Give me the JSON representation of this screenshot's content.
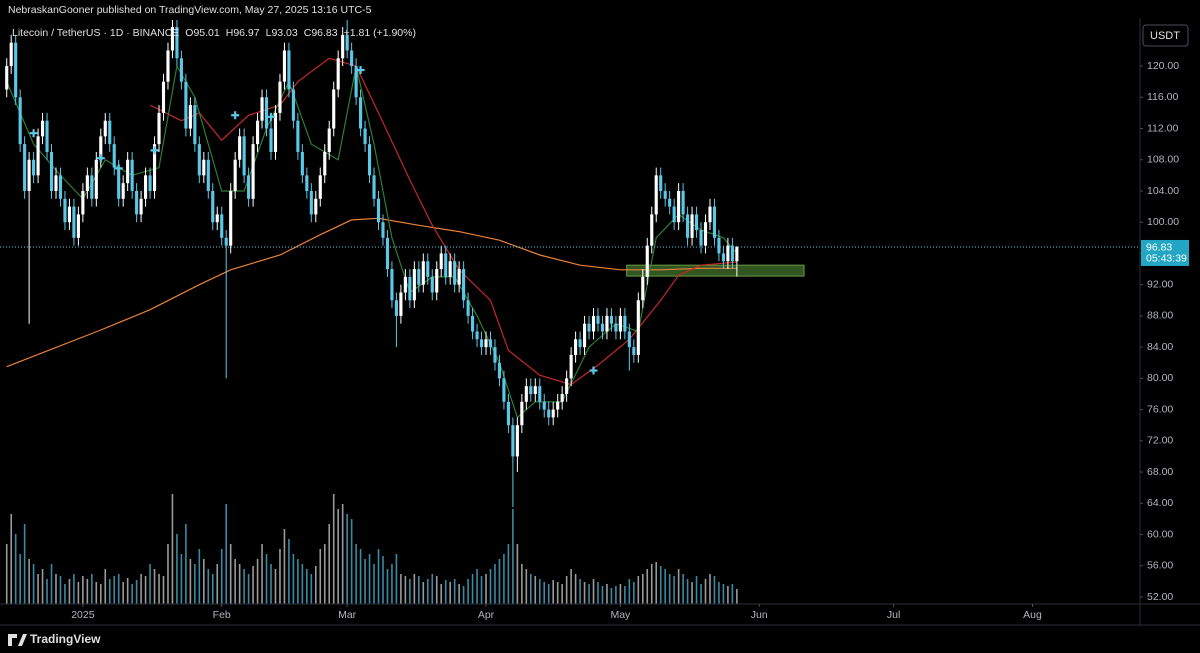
{
  "header": {
    "text": "NebraskanGooner published on TradingView.com, May 27, 2025 13:16 UTC-5"
  },
  "toolbar": {
    "currency": "USDT"
  },
  "footer": {
    "brand": "TradingView"
  },
  "chart_data": {
    "type": "candlestick",
    "legend": {
      "symbol": "Litecoin / TetherUS · 1D · BINANCE",
      "open": "O95.01",
      "high": "H96.97",
      "low": "L93.03",
      "close": "C96.83",
      "change": "+1.81 (+1.90%)"
    },
    "up_color": "#ffffff",
    "down_color": "#5bc8e8",
    "volume_up_color": "#9a9a9a",
    "volume_down_color": "#3a8aa3",
    "xlim": [
      -1.5,
      253
    ],
    "xticks": [
      {
        "value": 17,
        "label": "2025"
      },
      {
        "value": 48,
        "label": "Feb"
      },
      {
        "value": 76,
        "label": "Mar"
      },
      {
        "value": 107,
        "label": "Apr"
      },
      {
        "value": 137,
        "label": "May"
      },
      {
        "value": 168,
        "label": "Jun"
      },
      {
        "value": 198,
        "label": "Jul"
      },
      {
        "value": 229,
        "label": "Aug"
      }
    ],
    "ylim": [
      51.1,
      125.9
    ],
    "yticks": [
      {
        "value": 52,
        "label": "52.00"
      },
      {
        "value": 56,
        "label": "56.00"
      },
      {
        "value": 60,
        "label": "60.00"
      },
      {
        "value": 64,
        "label": "64.00"
      },
      {
        "value": 68,
        "label": "68.00"
      },
      {
        "value": 72,
        "label": "72.00"
      },
      {
        "value": 76,
        "label": "76.00"
      },
      {
        "value": 80,
        "label": "80.00"
      },
      {
        "value": 84,
        "label": "84.00"
      },
      {
        "value": 88,
        "label": "88.00"
      },
      {
        "value": 92,
        "label": "92.00"
      },
      {
        "value": 96,
        "label": "96.00"
      },
      {
        "value": 100,
        "label": "100.00"
      },
      {
        "value": 104,
        "label": "104.00"
      },
      {
        "value": 108,
        "label": "108.00"
      },
      {
        "value": 112,
        "label": "112.00"
      },
      {
        "value": 116,
        "label": "116.00"
      },
      {
        "value": 120,
        "label": "120.00"
      }
    ],
    "open": [
      117,
      120,
      123,
      116,
      110,
      104,
      108,
      106,
      111,
      113,
      109,
      104,
      106,
      103,
      100,
      102,
      98,
      101,
      104,
      106,
      103,
      108,
      111,
      113,
      110,
      107,
      103,
      105,
      108,
      104,
      101,
      103,
      106,
      104,
      110,
      114,
      118,
      122,
      125,
      121,
      118,
      112,
      115,
      110,
      106,
      108,
      104,
      100,
      101,
      98,
      97,
      104,
      108,
      111,
      106,
      103,
      110,
      113,
      116,
      112,
      109,
      114,
      118,
      122,
      117,
      113,
      109,
      106,
      104,
      101,
      103,
      106,
      109,
      112,
      117,
      121,
      124,
      122,
      120,
      116,
      112,
      110,
      106,
      103,
      100,
      98,
      94,
      90,
      88,
      91,
      93,
      90,
      94,
      92,
      95,
      93,
      91,
      94,
      96,
      93,
      95,
      92,
      94,
      90,
      88,
      86,
      85,
      84,
      85,
      84,
      82,
      80,
      77,
      74,
      70,
      74,
      77,
      79,
      78,
      79,
      77,
      76,
      75,
      76,
      77,
      78,
      80,
      83,
      85,
      84,
      87,
      86,
      88,
      87,
      86,
      88,
      87,
      86,
      88,
      86,
      84,
      83,
      90,
      93,
      97,
      101,
      106,
      104,
      103,
      102,
      100,
      104,
      101,
      98,
      101,
      99,
      97,
      100,
      102,
      98,
      96,
      95,
      97,
      95.01
    ],
    "high": [
      121,
      124,
      124,
      117,
      111,
      109,
      109,
      112,
      114,
      114,
      110,
      107,
      107,
      104,
      103,
      103,
      102,
      105,
      107,
      107,
      109,
      112,
      114,
      114,
      111,
      108,
      106,
      109,
      109,
      105,
      104,
      107,
      107,
      111,
      115,
      119,
      123,
      126,
      126,
      122,
      119,
      116,
      116,
      111,
      109,
      109,
      105,
      102,
      102,
      99,
      105,
      109,
      112,
      112,
      107,
      111,
      114,
      117,
      117,
      113,
      115,
      119,
      123,
      123,
      118,
      114,
      110,
      107,
      105,
      104,
      107,
      110,
      113,
      118,
      122,
      125,
      126,
      123,
      121,
      117,
      113,
      111,
      107,
      104,
      101,
      99,
      95,
      91,
      92,
      94,
      94,
      95,
      95,
      96,
      96,
      94,
      95,
      97,
      97,
      96,
      96,
      95,
      95,
      91,
      89,
      87,
      86,
      86,
      86,
      85,
      83,
      81,
      78,
      75,
      75,
      78,
      80,
      80,
      80,
      80,
      78,
      77,
      77,
      78,
      79,
      81,
      84,
      86,
      86,
      88,
      88,
      89,
      89,
      88,
      89,
      89,
      88,
      89,
      89,
      87,
      85,
      91,
      94,
      98,
      102,
      107,
      107,
      105,
      104,
      103,
      105,
      105,
      102,
      102,
      102,
      100,
      101,
      103,
      103,
      99,
      97,
      98,
      98,
      96.97
    ],
    "low": [
      116,
      119,
      115,
      109,
      103,
      87,
      105,
      105,
      110,
      108,
      103,
      103,
      102,
      99,
      99,
      97,
      97,
      100,
      103,
      102,
      102,
      107,
      110,
      109,
      106,
      102,
      102,
      104,
      103,
      100,
      100,
      102,
      103,
      103,
      109,
      113,
      117,
      121,
      120,
      117,
      111,
      111,
      109,
      105,
      105,
      103,
      99,
      99,
      97,
      80,
      96,
      103,
      107,
      105,
      102,
      102,
      109,
      112,
      111,
      108,
      108,
      113,
      117,
      116,
      112,
      108,
      105,
      103,
      100,
      100,
      102,
      105,
      108,
      111,
      116,
      120,
      121,
      119,
      115,
      111,
      109,
      105,
      102,
      99,
      97,
      93,
      89,
      84,
      87,
      90,
      89,
      89,
      91,
      91,
      92,
      90,
      90,
      93,
      92,
      92,
      91,
      91,
      89,
      87,
      85,
      84,
      83,
      83,
      83,
      81,
      79,
      76,
      73,
      63.5,
      68,
      73,
      76,
      77,
      77,
      76,
      75,
      74,
      74,
      75,
      76,
      77,
      79,
      82,
      83,
      83,
      85,
      85,
      86,
      85,
      85,
      86,
      85,
      85,
      85,
      81,
      82,
      82,
      89,
      92,
      96,
      100,
      103,
      102,
      101,
      99,
      99,
      100,
      97,
      97,
      98,
      96,
      96,
      99,
      97,
      95,
      94,
      94,
      94,
      93.03
    ],
    "close": [
      120,
      123,
      116,
      110,
      104,
      108,
      106,
      111,
      113,
      109,
      104,
      106,
      103,
      100,
      102,
      98,
      101,
      104,
      106,
      103,
      108,
      111,
      113,
      110,
      107,
      103,
      105,
      108,
      104,
      101,
      103,
      106,
      104,
      110,
      114,
      118,
      122,
      125,
      121,
      118,
      112,
      115,
      110,
      106,
      108,
      104,
      100,
      101,
      98,
      97,
      104,
      108,
      111,
      106,
      103,
      110,
      113,
      116,
      112,
      109,
      114,
      118,
      122,
      117,
      113,
      109,
      106,
      104,
      101,
      103,
      106,
      109,
      112,
      117,
      121,
      124,
      122,
      120,
      116,
      112,
      110,
      106,
      103,
      100,
      98,
      94,
      90,
      88,
      91,
      93,
      90,
      94,
      92,
      95,
      93,
      91,
      94,
      96,
      93,
      95,
      92,
      94,
      90,
      88,
      86,
      85,
      84,
      85,
      84,
      82,
      80,
      77,
      74,
      70,
      74,
      77,
      79,
      78,
      79,
      77,
      76,
      75,
      76,
      77,
      78,
      80,
      83,
      85,
      84,
      87,
      86,
      88,
      87,
      86,
      88,
      87,
      86,
      88,
      86,
      84,
      83,
      90,
      93,
      97,
      101,
      106,
      104,
      103,
      102,
      100,
      104,
      101,
      98,
      101,
      99,
      97,
      100,
      102,
      98,
      96,
      95,
      97,
      95,
      96.83
    ],
    "volume": [
      60,
      90,
      70,
      50,
      80,
      45,
      40,
      30,
      35,
      25,
      40,
      30,
      28,
      20,
      25,
      30,
      22,
      28,
      25,
      30,
      22,
      20,
      35,
      25,
      28,
      30,
      22,
      26,
      20,
      24,
      30,
      28,
      40,
      35,
      30,
      28,
      60,
      110,
      70,
      50,
      80,
      45,
      40,
      55,
      45,
      35,
      30,
      40,
      55,
      100,
      60,
      45,
      40,
      35,
      30,
      38,
      45,
      60,
      50,
      40,
      35,
      55,
      75,
      65,
      50,
      45,
      40,
      35,
      30,
      38,
      55,
      60,
      80,
      110,
      95,
      100,
      90,
      85,
      60,
      55,
      45,
      50,
      40,
      55,
      48,
      35,
      40,
      50,
      30,
      28,
      25,
      30,
      28,
      22,
      25,
      30,
      28,
      20,
      24,
      22,
      25,
      20,
      18,
      25,
      30,
      35,
      28,
      30,
      35,
      40,
      45,
      50,
      60,
      95,
      60,
      40,
      35,
      30,
      28,
      25,
      22,
      20,
      24,
      22,
      20,
      28,
      35,
      30,
      25,
      22,
      20,
      25,
      22,
      18,
      20,
      16,
      18,
      20,
      18,
      25,
      22,
      28,
      30,
      35,
      40,
      42,
      38,
      35,
      30,
      28,
      35,
      30,
      25,
      22,
      28,
      20,
      25,
      30,
      28,
      22,
      20,
      18,
      20,
      15
    ],
    "lines": [
      {
        "color": "#e8823a",
        "x": [
          0,
          21,
          32,
          43,
          50,
          61,
          70,
          77,
          83,
          92,
          101,
          110,
          119,
          128,
          137,
          146,
          155,
          163
        ],
        "values": [
          81.5,
          86.2,
          88.8,
          92,
          93.9,
          95.8,
          98.4,
          100.3,
          100.5,
          99.6,
          98.8,
          97.7,
          95.8,
          94.5,
          93.9,
          93.9,
          94.1,
          94.1
        ]
      },
      {
        "color": "#c62828",
        "x": [
          32,
          39,
          43,
          48,
          54,
          61,
          65,
          72,
          78,
          83,
          90,
          95,
          101,
          108,
          112,
          119,
          126,
          132,
          139,
          146,
          150,
          155,
          163
        ],
        "values": [
          115,
          113,
          114,
          110.5,
          113.7,
          115,
          118,
          121,
          120,
          114,
          105.4,
          99.6,
          93.9,
          90,
          83.6,
          80.4,
          79.2,
          81.7,
          85,
          90,
          93.2,
          94.5,
          94.9
        ]
      },
      {
        "color": "#2e7d32",
        "x": [
          0,
          6,
          12,
          17,
          22,
          28,
          34,
          38,
          42,
          48,
          53,
          58,
          63,
          68,
          74,
          78,
          82,
          86,
          90,
          95,
          100,
          105,
          110,
          114,
          118,
          124,
          130,
          136,
          141,
          145,
          150,
          155,
          160,
          163
        ],
        "values": [
          118,
          110,
          106,
          103,
          108,
          106,
          107,
          120,
          116,
          104,
          104,
          112,
          118,
          110,
          108,
          120,
          110,
          98,
          91,
          93,
          93,
          88,
          82,
          75,
          77,
          77,
          84,
          87,
          86,
          98,
          101,
          99,
          98,
          96
        ]
      }
    ],
    "markers": {
      "color": "#5bc8e8",
      "x": [
        6,
        21,
        25,
        33,
        51,
        59,
        79,
        131
      ],
      "values": [
        111.4,
        108.2,
        106.9,
        109.2,
        113.7,
        113.5,
        119.5,
        81
      ]
    },
    "zone": {
      "low": 93.1,
      "high": 94.5,
      "x": [
        138.4,
        178
      ],
      "color": "#3d6b2a"
    },
    "last_price_countdown": "05:43:39"
  }
}
